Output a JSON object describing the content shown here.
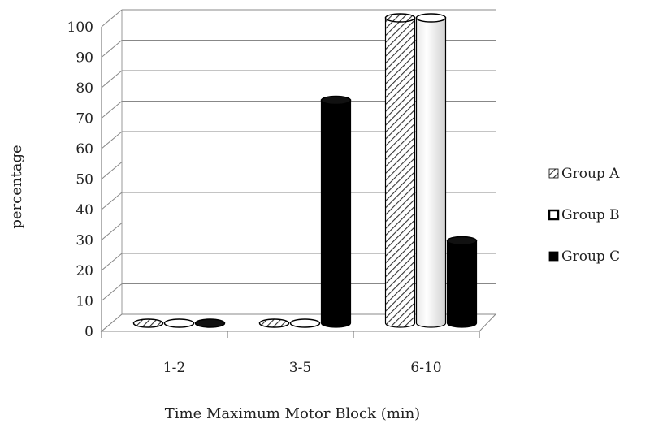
{
  "chart_data": {
    "type": "bar",
    "categories": [
      "1-2",
      "3-5",
      "6-10"
    ],
    "series": [
      {
        "name": "Group A",
        "values": [
          0,
          0,
          100
        ],
        "color": "#ffffff",
        "pattern": "diagonal-hatch"
      },
      {
        "name": "Group B",
        "values": [
          0,
          0,
          100
        ],
        "color": "#ffffff",
        "pattern": "solid"
      },
      {
        "name": "Group C",
        "values": [
          0,
          73,
          27
        ],
        "color": "#000000",
        "pattern": "solid"
      }
    ],
    "xlabel": "Time Maximum Motor Block (min)",
    "ylabel": "percentage",
    "ylim": [
      0,
      100
    ],
    "yticks": [
      "0",
      "10",
      "20",
      "30",
      "40",
      "50",
      "60",
      "70",
      "80",
      "90",
      "100"
    ],
    "grid": true,
    "legend_position": "right"
  }
}
